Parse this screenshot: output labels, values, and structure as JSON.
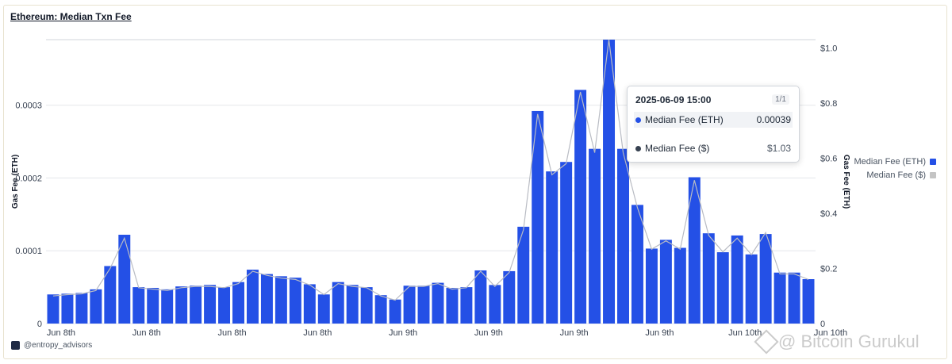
{
  "title": "Ethereum: Median Txn Fee",
  "footer_handle": "@entropy_advisors",
  "watermark": "@ Bitcoin Gurukul",
  "colors": {
    "bar": "#2450e6",
    "line": "#b9bcc4",
    "grid": "#e5e7eb",
    "axis_text": "#374151"
  },
  "legend": [
    {
      "label": "Median Fee (ETH)",
      "color": "#2450e6"
    },
    {
      "label": "Median Fee ($)",
      "color": "#c4c4c4"
    }
  ],
  "tooltip": {
    "timestamp": "2025-06-09 15:00",
    "page": "1/1",
    "rows": [
      {
        "label": "Median Fee (ETH)",
        "value": "0.00039",
        "dot_color": "#2450e6"
      },
      {
        "label": "Median Fee ($)",
        "value": "$1.03",
        "dot_color": "#374151"
      }
    ]
  },
  "chart_data": {
    "type": "bar",
    "title": "Ethereum: Median Txn Fee",
    "ylabel": "Gas Fee (ETH)",
    "ylabel_right": "Gas Fee (ETH)",
    "ylim": [
      0,
      0.00039
    ],
    "ylim_right": [
      0,
      1.03
    ],
    "yticks_left": [
      {
        "value": 0,
        "label": "0"
      },
      {
        "value": 0.0001,
        "label": "0.0001"
      },
      {
        "value": 0.0002,
        "label": "0.0002"
      },
      {
        "value": 0.0003,
        "label": "0.0003"
      }
    ],
    "yticks_right": [
      {
        "value": 0,
        "label": "0"
      },
      {
        "value": 0.2,
        "label": "$0.2"
      },
      {
        "value": 0.4,
        "label": "$0.4"
      },
      {
        "value": 0.6,
        "label": "$0.6"
      },
      {
        "value": 0.8,
        "label": "$0.8"
      },
      {
        "value": 1.0,
        "label": "$1.0"
      }
    ],
    "xtick_labels": [
      {
        "index": 0,
        "label": "Jun 8th"
      },
      {
        "index": 6,
        "label": "Jun 8th"
      },
      {
        "index": 12,
        "label": "Jun 8th"
      },
      {
        "index": 18,
        "label": "Jun 8th"
      },
      {
        "index": 24,
        "label": "Jun 9th"
      },
      {
        "index": 30,
        "label": "Jun 9th"
      },
      {
        "index": 36,
        "label": "Jun 9th"
      },
      {
        "index": 42,
        "label": "Jun 9th"
      },
      {
        "index": 48,
        "label": "Jun 10th"
      },
      {
        "index": 54,
        "label": "Jun 10th"
      }
    ],
    "grid": true,
    "legend_position": "right",
    "series": [
      {
        "name": "Median Fee (ETH)",
        "type": "bar",
        "axis": "left",
        "values": [
          4e-05,
          4.1e-05,
          4.2e-05,
          4.7e-05,
          7.9e-05,
          0.000122,
          5e-05,
          4.9e-05,
          4.7e-05,
          5.1e-05,
          5.2e-05,
          5.3e-05,
          5e-05,
          5.7e-05,
          7.4e-05,
          6.8e-05,
          6.5e-05,
          6.3e-05,
          5.4e-05,
          4e-05,
          5.7e-05,
          5.3e-05,
          5e-05,
          3.9e-05,
          3.3e-05,
          5.2e-05,
          5.2e-05,
          5.6e-05,
          4.9e-05,
          5e-05,
          7.3e-05,
          5.3e-05,
          7.2e-05,
          0.000133,
          0.000292,
          0.000209,
          0.000222,
          0.000321,
          0.00024,
          0.00039,
          0.00024,
          0.000163,
          0.000103,
          0.000115,
          0.000104,
          0.000201,
          0.000124,
          9.8e-05,
          0.000121,
          9.5e-05,
          0.000123,
          7e-05,
          7e-05,
          6.1e-05
        ]
      },
      {
        "name": "Median Fee ($)",
        "type": "line",
        "axis": "right",
        "values": [
          0.1,
          0.105,
          0.108,
          0.12,
          0.2,
          0.31,
          0.13,
          0.125,
          0.12,
          0.13,
          0.135,
          0.135,
          0.13,
          0.145,
          0.19,
          0.175,
          0.165,
          0.16,
          0.14,
          0.105,
          0.145,
          0.135,
          0.13,
          0.1,
          0.085,
          0.135,
          0.135,
          0.145,
          0.125,
          0.13,
          0.19,
          0.135,
          0.185,
          0.34,
          0.76,
          0.54,
          0.58,
          0.84,
          0.62,
          1.03,
          0.62,
          0.42,
          0.27,
          0.3,
          0.27,
          0.52,
          0.32,
          0.26,
          0.31,
          0.25,
          0.33,
          0.18,
          0.18,
          0.16
        ]
      }
    ]
  }
}
